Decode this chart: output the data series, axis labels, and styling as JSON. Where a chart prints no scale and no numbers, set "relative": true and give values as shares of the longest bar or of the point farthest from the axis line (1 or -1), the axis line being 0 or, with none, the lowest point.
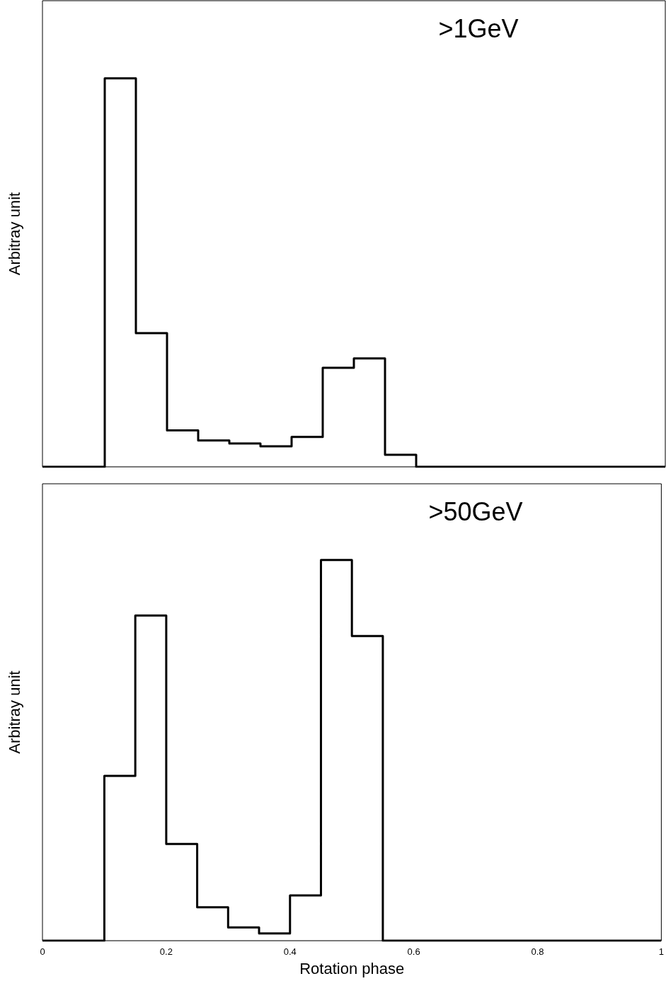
{
  "chart_data": [
    {
      "type": "step",
      "ylabel": "Arbitray unit",
      "annotations": [
        ">1GeV"
      ],
      "relative": true,
      "x": [
        0,
        0.05,
        0.1,
        0.15,
        0.2,
        0.25,
        0.3,
        0.35,
        0.4,
        0.45,
        0.5,
        0.55,
        0.6,
        0.65,
        0.7,
        0.75,
        0.8,
        0.85,
        0.9,
        0.95,
        1
      ],
      "values": [
        0,
        0,
        1,
        0.344,
        0.094,
        0.068,
        0.06,
        0.053,
        0.077,
        0.255,
        0.279,
        0.031,
        0,
        0,
        0,
        0,
        0,
        0,
        0,
        0,
        0
      ],
      "color": "#000000",
      "xlim": [
        0,
        1
      ],
      "xticks": [
        0,
        0.2,
        0.4,
        0.6,
        0.8,
        1
      ],
      "tick_labels": false
    },
    {
      "type": "step",
      "ylabel": "Arbitray unit",
      "xlabel": "Rotation phase",
      "annotations": [
        ">50GeV"
      ],
      "relative": true,
      "x": [
        0,
        0.05,
        0.1,
        0.15,
        0.2,
        0.25,
        0.3,
        0.35,
        0.4,
        0.45,
        0.5,
        0.55,
        0.6,
        0.65,
        0.7,
        0.75,
        0.8,
        0.85,
        0.9,
        0.95,
        1
      ],
      "values": [
        0,
        0,
        0.433,
        0.854,
        0.254,
        0.088,
        0.035,
        0.019,
        0.119,
        1,
        0.8,
        0,
        0,
        0,
        0,
        0,
        0,
        0,
        0,
        0,
        0
      ],
      "color": "#000000",
      "xlim": [
        0,
        1
      ],
      "xticks": [
        0,
        0.2,
        0.4,
        0.6,
        0.8,
        1
      ],
      "tick_labels": "x"
    }
  ]
}
